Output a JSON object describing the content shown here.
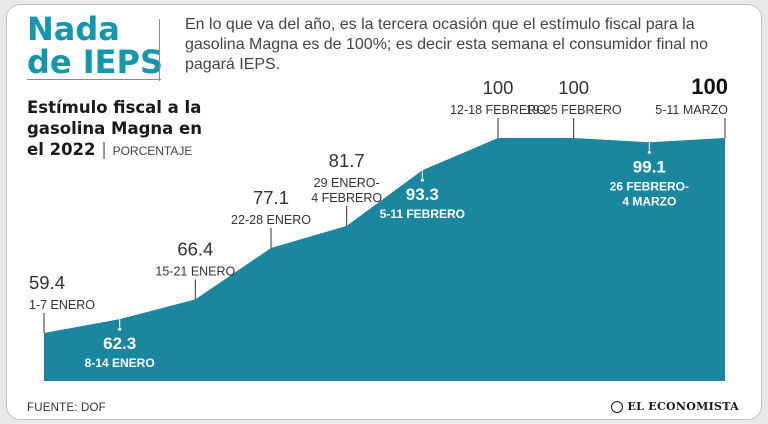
{
  "header": {
    "headline_line1": "Nada",
    "headline_line2": "de IEPS",
    "intro_line1": "En lo que va del año, es la tercera ocasión que el estímulo fiscal para la",
    "intro_line2": "gasolina Magna es de 100%; es decir esta semana el consumidor final no",
    "intro_line3": "pagará IEPS."
  },
  "footer": {
    "source": "FUENTE: DOF",
    "brand": "EL ECONOMISTA"
  },
  "colors": {
    "area_fill": "#1b869f",
    "headline": "#1497ae",
    "text_dark": "#333333"
  },
  "chart_data": {
    "type": "area",
    "title_lines": [
      "Estímulo fiscal a la",
      "gasolina Magna en",
      "el 2022"
    ],
    "unit": "PORCENTAJE",
    "ylim": [
      0,
      100
    ],
    "grid": false,
    "legend": "none",
    "points": [
      {
        "value": 59.4,
        "value_label": "59.4",
        "date_lines": [
          "1-7 ENERO"
        ],
        "label_position": "above"
      },
      {
        "value": 62.3,
        "value_label": "62.3",
        "date_lines": [
          "8-14 ENERO"
        ],
        "label_position": "inside"
      },
      {
        "value": 66.4,
        "value_label": "66.4",
        "date_lines": [
          "15-21 ENERO"
        ],
        "label_position": "above"
      },
      {
        "value": 77.1,
        "value_label": "77.1",
        "date_lines": [
          "22-28 ENERO"
        ],
        "label_position": "above"
      },
      {
        "value": 81.7,
        "value_label": "81.7",
        "date_lines": [
          "29 ENERO-",
          "4 FEBRERO"
        ],
        "label_position": "above"
      },
      {
        "value": 93.3,
        "value_label": "93.3",
        "date_lines": [
          "5-11 FEBRERO"
        ],
        "label_position": "inside"
      },
      {
        "value": 100,
        "value_label": "100",
        "date_lines": [
          "12-18 FEBRERO"
        ],
        "label_position": "above"
      },
      {
        "value": 100,
        "value_label": "100",
        "date_lines": [
          "19-25 FEBRERO"
        ],
        "label_position": "above"
      },
      {
        "value": 99.1,
        "value_label": "99.1",
        "date_lines": [
          "26 FEBRERO-",
          "4 MARZO"
        ],
        "label_position": "inside"
      },
      {
        "value": 100,
        "value_label": "100",
        "date_lines": [
          "5-11 MARZO"
        ],
        "label_position": "above",
        "highlight": true
      }
    ]
  }
}
